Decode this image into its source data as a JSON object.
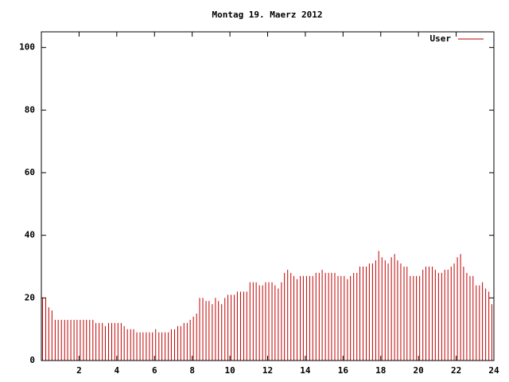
{
  "chart_data": {
    "type": "impulse",
    "title": "Montag 19. Maerz 2012",
    "x": [
      0,
      0.17,
      0.33,
      0.5,
      0.67,
      0.83,
      1,
      1.17,
      1.33,
      1.5,
      1.67,
      1.83,
      2,
      2.17,
      2.33,
      2.5,
      2.67,
      2.83,
      3,
      3.17,
      3.33,
      3.5,
      3.67,
      3.83,
      4,
      4.17,
      4.33,
      4.5,
      4.67,
      4.83,
      5,
      5.17,
      5.33,
      5.5,
      5.67,
      5.83,
      6,
      6.17,
      6.33,
      6.5,
      6.67,
      6.83,
      7,
      7.17,
      7.33,
      7.5,
      7.67,
      7.83,
      8,
      8.17,
      8.33,
      8.5,
      8.67,
      8.83,
      9,
      9.17,
      9.33,
      9.5,
      9.67,
      9.83,
      10,
      10.17,
      10.33,
      10.5,
      10.67,
      10.83,
      11,
      11.17,
      11.33,
      11.5,
      11.67,
      11.83,
      12,
      12.17,
      12.33,
      12.5,
      12.67,
      12.83,
      13,
      13.17,
      13.33,
      13.5,
      13.67,
      13.83,
      14,
      14.17,
      14.33,
      14.5,
      14.67,
      14.83,
      15,
      15.17,
      15.33,
      15.5,
      15.67,
      15.83,
      16,
      16.17,
      16.33,
      16.5,
      16.67,
      16.83,
      17,
      17.17,
      17.33,
      17.5,
      17.67,
      17.83,
      18,
      18.17,
      18.33,
      18.5,
      18.67,
      18.83,
      19,
      19.17,
      19.33,
      19.5,
      19.67,
      19.83,
      20,
      20.17,
      20.33,
      20.5,
      20.67,
      20.83,
      21,
      21.17,
      21.33,
      21.5,
      21.67,
      21.83,
      22,
      22.17,
      22.33,
      22.5,
      22.67,
      22.83,
      23,
      23.17,
      23.33,
      23.5,
      23.67,
      23.83
    ],
    "series": [
      {
        "name": "User",
        "color": "#c00000",
        "values": [
          20,
          20,
          17,
          16,
          13,
          13,
          13,
          13,
          13,
          13,
          13,
          13,
          13,
          13,
          13,
          13,
          13,
          12,
          12,
          12,
          11,
          12,
          12,
          12,
          12,
          12,
          11,
          10,
          10,
          10,
          9,
          9,
          9,
          9,
          9,
          9,
          10,
          9,
          9,
          9,
          9,
          10,
          10,
          11,
          11,
          12,
          12,
          13,
          14,
          15,
          20,
          20,
          19,
          19,
          18,
          20,
          19,
          18,
          20,
          21,
          21,
          21,
          22,
          22,
          22,
          22,
          25,
          25,
          25,
          24,
          24,
          25,
          25,
          25,
          24,
          23,
          25,
          28,
          29,
          28,
          27,
          26,
          27,
          27,
          27,
          27,
          27,
          28,
          28,
          29,
          28,
          28,
          28,
          28,
          27,
          27,
          27,
          26,
          27,
          28,
          28,
          30,
          30,
          30,
          31,
          31,
          32,
          35,
          33,
          32,
          31,
          33,
          34,
          32,
          31,
          30,
          30,
          27,
          27,
          27,
          27,
          29,
          30,
          30,
          30,
          29,
          28,
          28,
          29,
          29,
          30,
          31,
          33,
          34,
          30,
          28,
          27,
          27,
          24,
          24,
          25,
          23,
          22,
          18
        ]
      }
    ],
    "xlim": [
      0,
      24
    ],
    "xticks": [
      2,
      4,
      6,
      8,
      10,
      12,
      14,
      16,
      18,
      20,
      22,
      24
    ],
    "ylim": [
      0,
      105
    ],
    "yticks": [
      0,
      20,
      40,
      60,
      80,
      100
    ],
    "legend": "top-right"
  }
}
